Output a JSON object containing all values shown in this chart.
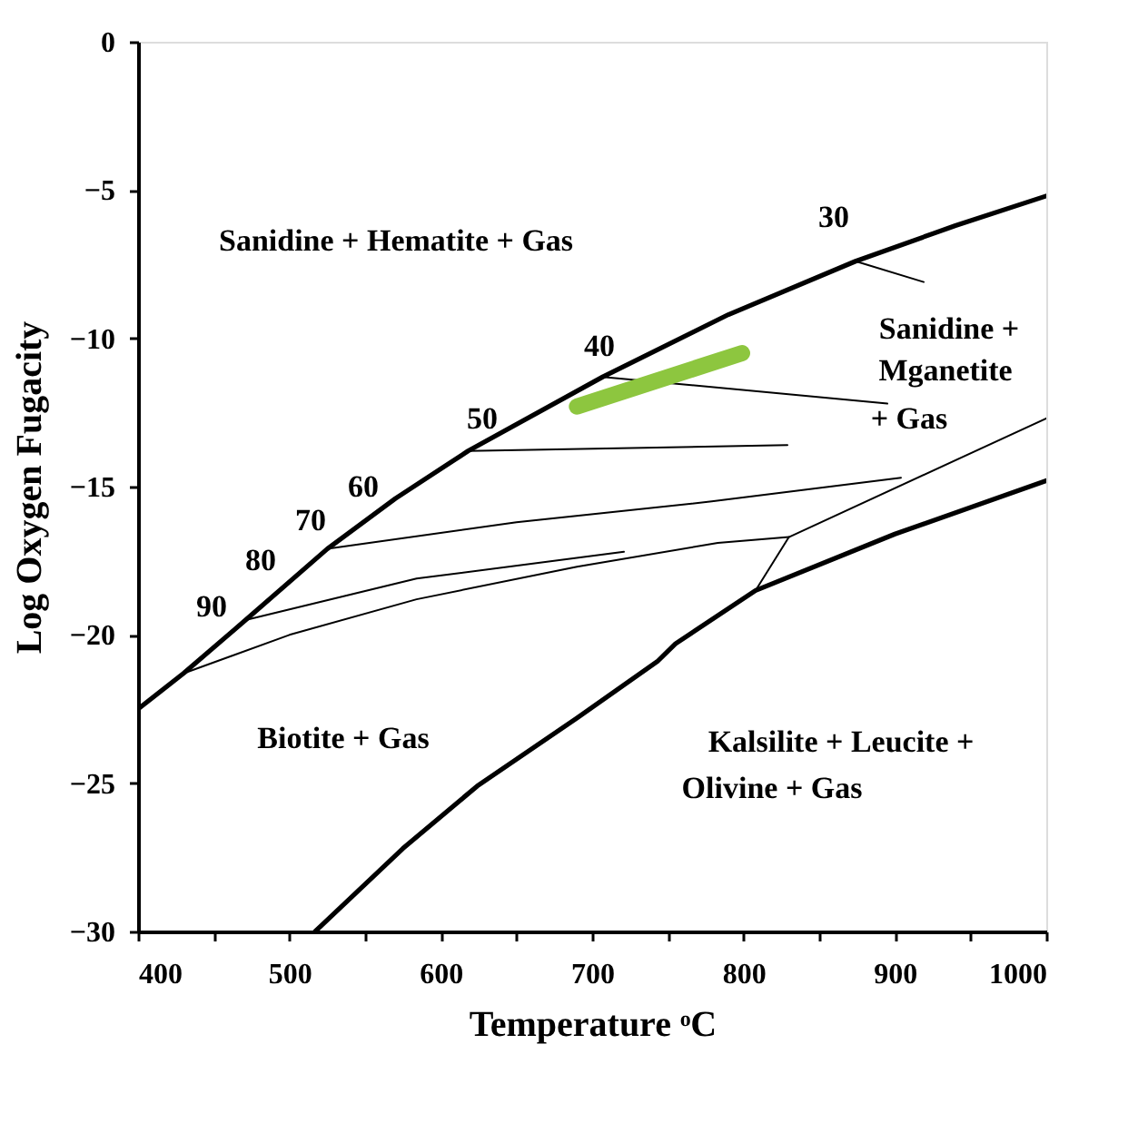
{
  "chart_data": {
    "type": "line",
    "xlabel": "Temperature ᵒC",
    "ylabel": "Log Oxygen Fugacity",
    "xlim": [
      400,
      1000
    ],
    "ylim": [
      -30,
      0
    ],
    "xticks": [
      400,
      {
        "value": 450,
        "label": null
      },
      500,
      {
        "value": 550,
        "label": null
      },
      600,
      {
        "value": 650,
        "label": null
      },
      700,
      {
        "value": 750,
        "label": null
      },
      800,
      {
        "value": 850,
        "label": null
      },
      900,
      {
        "value": 950,
        "label": null
      },
      1000
    ],
    "yticks": [
      -30,
      -25,
      -20,
      -15,
      -10,
      -5,
      0
    ],
    "grid": false,
    "marker": "none",
    "line_style": "solid",
    "series": [
      {
        "color": "#000000",
        "x": [
          400,
          430,
          471,
          525,
          570,
          618,
          707,
          790,
          874,
          940,
          1000
        ],
        "values": [
          -22.5,
          -21.3,
          -19.5,
          -17.1,
          -15.4,
          -13.8,
          -11.3,
          -9.2,
          -7.4,
          -6.2,
          -5.2
        ]
      },
      {
        "color": "#000000",
        "x": [
          517,
          575,
          624,
          690,
          743,
          755,
          808,
          900,
          1000
        ],
        "values": [
          -30,
          -27.2,
          -25.1,
          -22.8,
          -20.9,
          -20.3,
          -18.5,
          -16.6,
          -14.8
        ]
      },
      {
        "color": "#000000",
        "x": [
          618,
          829
        ],
        "values": [
          -13.8,
          -13.6
        ]
      },
      {
        "color": "#000000",
        "x": [
          707,
          895
        ],
        "values": [
          -11.3,
          -12.2
        ]
      },
      {
        "color": "#000000",
        "x": [
          874,
          919
        ],
        "values": [
          -7.4,
          -8.1
        ]
      },
      {
        "color": "#000000",
        "x": [
          525,
          650,
          779,
          904
        ],
        "values": [
          -17.1,
          -16.2,
          -15.5,
          -14.7
        ]
      },
      {
        "color": "#000000",
        "x": [
          430,
          500,
          584,
          690,
          783,
          830,
          1000
        ],
        "values": [
          -21.3,
          -20.0,
          -18.8,
          -17.7,
          -16.9,
          -16.7,
          -12.7
        ]
      },
      {
        "color": "#000000",
        "x": [
          830,
          808
        ],
        "values": [
          -16.7,
          -18.5
        ]
      },
      {
        "color": "#000000",
        "x": [
          471,
          584,
          721
        ],
        "values": [
          -19.5,
          -18.1,
          -17.2
        ]
      },
      {
        "color": "#8dc63f",
        "x": [
          690,
          799
        ],
        "values": [
          -12.3,
          -10.5
        ]
      }
    ],
    "annotations": [
      "Sanidine + Hematite + Gas",
      "30",
      "40",
      "50",
      "60",
      "70",
      "80",
      "90",
      "Sanidine +",
      "Mganetite",
      "+ Gas",
      "Biotite + Gas",
      "Kalsilite + Leucite +",
      "Olivine + Gas"
    ]
  }
}
